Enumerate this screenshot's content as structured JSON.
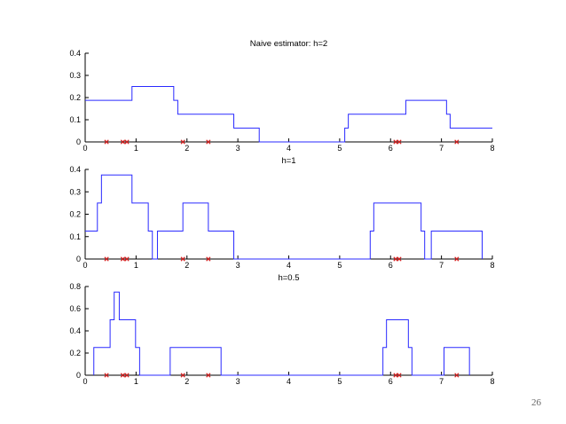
{
  "page_number": "26",
  "colors": {
    "estimate": "#2a2aff",
    "samples": "#d62020",
    "axis": "#000000"
  },
  "samples": [
    0.42,
    0.74,
    0.82,
    1.92,
    2.42,
    6.1,
    6.17,
    7.3
  ],
  "chart_data": [
    {
      "type": "line",
      "step": true,
      "title": "Naive estimator: h=2",
      "xlim": [
        0,
        8
      ],
      "ylim": [
        0,
        0.4
      ],
      "xticks": [
        "0",
        "1",
        "2",
        "3",
        "4",
        "5",
        "6",
        "7",
        "8"
      ],
      "yticks": [
        "0",
        "0.1",
        "0.2",
        "0.3",
        "0.4"
      ],
      "x": [
        0,
        0.92,
        0.92,
        1.74,
        1.74,
        1.82,
        1.82,
        2.92,
        2.92,
        3.42,
        3.42,
        5.1,
        5.1,
        5.17,
        5.17,
        6.3,
        6.3,
        7.1,
        7.1,
        7.17,
        7.17,
        8.0
      ],
      "y": [
        0.1875,
        0.1875,
        0.25,
        0.25,
        0.1875,
        0.1875,
        0.125,
        0.125,
        0.0625,
        0.0625,
        0,
        0,
        0.0625,
        0.0625,
        0.125,
        0.125,
        0.1875,
        0.1875,
        0.125,
        0.125,
        0.0625,
        0.0625
      ]
    },
    {
      "type": "line",
      "step": true,
      "title": "h=1",
      "xlim": [
        0,
        8
      ],
      "ylim": [
        0,
        0.4
      ],
      "xticks": [
        "0",
        "1",
        "2",
        "3",
        "4",
        "5",
        "6",
        "7",
        "8"
      ],
      "yticks": [
        "0",
        "0.1",
        "0.2",
        "0.3",
        "0.4"
      ],
      "x": [
        0,
        0.24,
        0.24,
        0.32,
        0.32,
        0.92,
        0.92,
        1.24,
        1.24,
        1.32,
        1.32,
        1.42,
        1.42,
        1.92,
        1.92,
        2.42,
        2.42,
        2.92,
        2.92,
        5.6,
        5.6,
        5.67,
        5.67,
        6.6,
        6.6,
        6.67,
        6.67,
        6.8,
        6.8,
        7.8,
        7.8
      ],
      "y": [
        0.125,
        0.125,
        0.25,
        0.25,
        0.375,
        0.375,
        0.25,
        0.25,
        0.125,
        0.125,
        0,
        0,
        0.125,
        0.125,
        0.25,
        0.25,
        0.125,
        0.125,
        0,
        0,
        0.125,
        0.125,
        0.25,
        0.25,
        0.125,
        0.125,
        0,
        0,
        0.125,
        0.125,
        0
      ]
    },
    {
      "type": "line",
      "step": true,
      "title": "h=0.5",
      "xlim": [
        0,
        8
      ],
      "ylim": [
        0,
        0.8
      ],
      "xticks": [
        "0",
        "1",
        "2",
        "3",
        "4",
        "5",
        "6",
        "7",
        "8"
      ],
      "yticks": [
        "0",
        "0.2",
        "0.4",
        "0.6",
        "0.8"
      ],
      "x": [
        0.17,
        0.17,
        0.49,
        0.49,
        0.57,
        0.57,
        0.67,
        0.67,
        0.99,
        0.99,
        1.07,
        1.07,
        1.67,
        1.67,
        2.17,
        2.17,
        2.67,
        2.67,
        5.85,
        5.85,
        5.92,
        5.92,
        6.35,
        6.35,
        6.42,
        6.42,
        7.05,
        7.05,
        7.55,
        7.55
      ],
      "y": [
        0,
        0.25,
        0.25,
        0.5,
        0.5,
        0.75,
        0.75,
        0.5,
        0.5,
        0.25,
        0.25,
        0,
        0,
        0.25,
        0.25,
        0.25,
        0.25,
        0,
        0,
        0.25,
        0.25,
        0.5,
        0.5,
        0.25,
        0.25,
        0,
        0,
        0.25,
        0.25,
        0
      ]
    }
  ]
}
